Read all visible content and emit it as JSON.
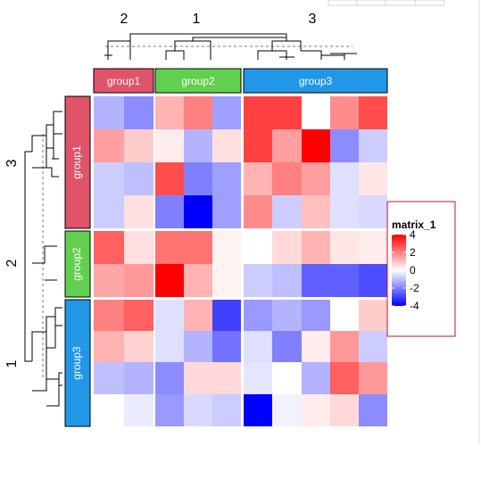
{
  "chart_data": {
    "type": "heatmap",
    "title": "",
    "row_groups": [
      {
        "label": "group1",
        "color": "#DF536B",
        "rows": 4
      },
      {
        "label": "group2",
        "color": "#61D04F",
        "rows": 2
      },
      {
        "label": "group3",
        "color": "#2297E6",
        "rows": 4
      }
    ],
    "column_groups": [
      {
        "label": "group1",
        "color": "#DF536B",
        "cols": 2
      },
      {
        "label": "group2",
        "color": "#61D04F",
        "cols": 3
      },
      {
        "label": "group3",
        "color": "#2297E6",
        "cols": 5
      }
    ],
    "column_dendrogram_labels": [
      "2",
      "1",
      "3"
    ],
    "row_dendrogram_labels": [
      "3",
      "2",
      "1"
    ],
    "values": [
      [
        -1.2,
        -1.8,
        1.2,
        2.0,
        -1.5,
        3.0,
        3.0,
        0.0,
        1.8,
        2.8
      ],
      [
        1.5,
        0.8,
        0.3,
        -1.2,
        0.5,
        3.0,
        1.5,
        4.0,
        -1.8,
        -0.8
      ],
      [
        -0.8,
        -1.0,
        2.8,
        -2.0,
        -1.5,
        1.2,
        2.0,
        1.5,
        -0.5,
        0.4
      ],
      [
        -0.8,
        0.5,
        -2.0,
        -4.0,
        -1.5,
        1.8,
        -0.8,
        1.0,
        -0.5,
        -0.6
      ],
      [
        2.5,
        0.5,
        2.2,
        2.2,
        0.2,
        0.0,
        0.6,
        1.2,
        0.4,
        0.3
      ],
      [
        1.4,
        1.6,
        4.0,
        1.2,
        0.2,
        -0.8,
        -1.0,
        -2.5,
        -2.5,
        -2.8
      ],
      [
        2.0,
        2.5,
        -0.5,
        1.2,
        -3.0,
        -1.6,
        -1.2,
        -1.6,
        0.0,
        0.8
      ],
      [
        1.2,
        0.7,
        -0.5,
        -1.2,
        -2.2,
        -0.5,
        -2.0,
        0.3,
        1.6,
        -0.8
      ],
      [
        -1.0,
        -1.2,
        -1.8,
        0.6,
        0.6,
        -0.4,
        0.0,
        -1.2,
        2.5,
        1.6
      ],
      [
        0.0,
        -0.3,
        -1.6,
        -0.6,
        -0.8,
        -4.2,
        -0.2,
        0.3,
        0.6,
        -1.8
      ]
    ],
    "color_scale": {
      "min": -4,
      "mid": 0,
      "max": 4,
      "min_color": "#0000FF",
      "mid_color": "#FFFFFF",
      "max_color": "#FF0000"
    },
    "legend": {
      "title": "matrix_1",
      "ticks": [
        4,
        2,
        0,
        -2,
        -4
      ],
      "tick_labels": [
        "4",
        "2",
        "0",
        "-2",
        "-4"
      ],
      "placement": "right",
      "border_color": "#C8102E"
    }
  }
}
